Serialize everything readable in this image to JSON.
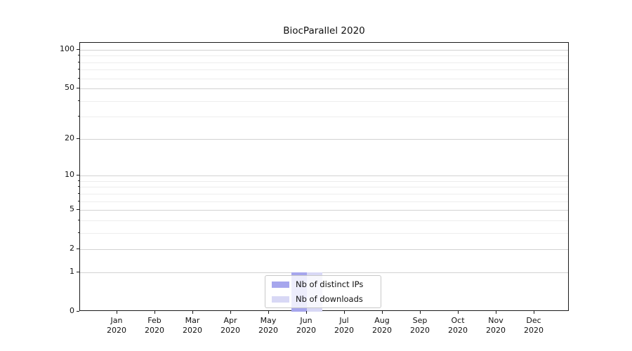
{
  "figure": {
    "title": "BiocParallel 2020"
  },
  "chart_data": {
    "type": "bar",
    "title": "BiocParallel 2020",
    "categories": [
      {
        "month": "Jan",
        "year": "2020"
      },
      {
        "month": "Feb",
        "year": "2020"
      },
      {
        "month": "Mar",
        "year": "2020"
      },
      {
        "month": "Apr",
        "year": "2020"
      },
      {
        "month": "May",
        "year": "2020"
      },
      {
        "month": "Jun",
        "year": "2020"
      },
      {
        "month": "Jul",
        "year": "2020"
      },
      {
        "month": "Aug",
        "year": "2020"
      },
      {
        "month": "Sep",
        "year": "2020"
      },
      {
        "month": "Oct",
        "year": "2020"
      },
      {
        "month": "Nov",
        "year": "2020"
      },
      {
        "month": "Dec",
        "year": "2020"
      }
    ],
    "series": [
      {
        "name": "Nb of distinct IPs",
        "color": "#a6a6ed",
        "values": [
          0,
          0,
          0,
          0,
          0,
          1,
          0,
          0,
          0,
          0,
          0,
          0
        ]
      },
      {
        "name": "Nb of downloads",
        "color": "#d8d8f5",
        "values": [
          0,
          0,
          0,
          0,
          0,
          1,
          0,
          0,
          0,
          0,
          0,
          0
        ]
      }
    ],
    "xlabel": "",
    "ylabel": "",
    "y_axis": {
      "scale": "log1p",
      "ticks": [
        0,
        1,
        2,
        5,
        10,
        20,
        50,
        100
      ],
      "minor_ticks": [
        3,
        4,
        6,
        7,
        8,
        9,
        30,
        40,
        60,
        70,
        80,
        90
      ],
      "ylim": [
        0,
        113
      ]
    },
    "grid": true,
    "legend": {
      "position": "lower center",
      "entries": [
        "Nb of distinct IPs",
        "Nb of downloads"
      ]
    }
  }
}
